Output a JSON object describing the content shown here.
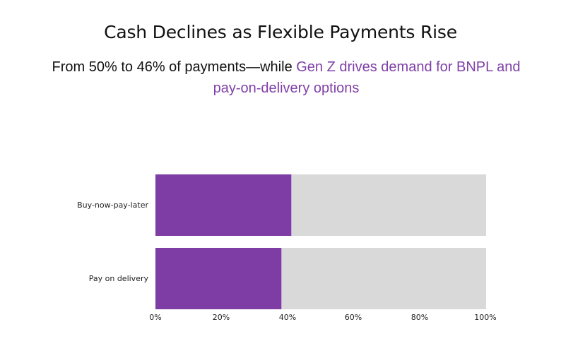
{
  "title": "Cash Declines as Flexible Payments Rise",
  "subtitle": {
    "plain": "From 50% to 46% of payments—while ",
    "highlight": "Gen Z drives demand for BNPL and pay-on-delivery options"
  },
  "colors": {
    "bar": "#7E3DA4",
    "track": "#D9D9D9",
    "highlight_text": "#8040A8"
  },
  "chart_data": {
    "type": "bar",
    "orientation": "horizontal",
    "title": "Cash Declines as Flexible Payments Rise",
    "subtitle": "From 50% to 46% of payments—while Gen Z drives demand for BNPL and pay-on-delivery options",
    "categories": [
      "Buy-now-pay-later",
      "Pay on delivery"
    ],
    "values": [
      41,
      38
    ],
    "unit": "%",
    "xlim": [
      0,
      100
    ],
    "xticks": [
      "0%",
      "20%",
      "40%",
      "60%",
      "80%",
      "100%"
    ],
    "xlabel": "",
    "ylabel": "",
    "grid": false,
    "legend": "none",
    "background_track": 100
  }
}
